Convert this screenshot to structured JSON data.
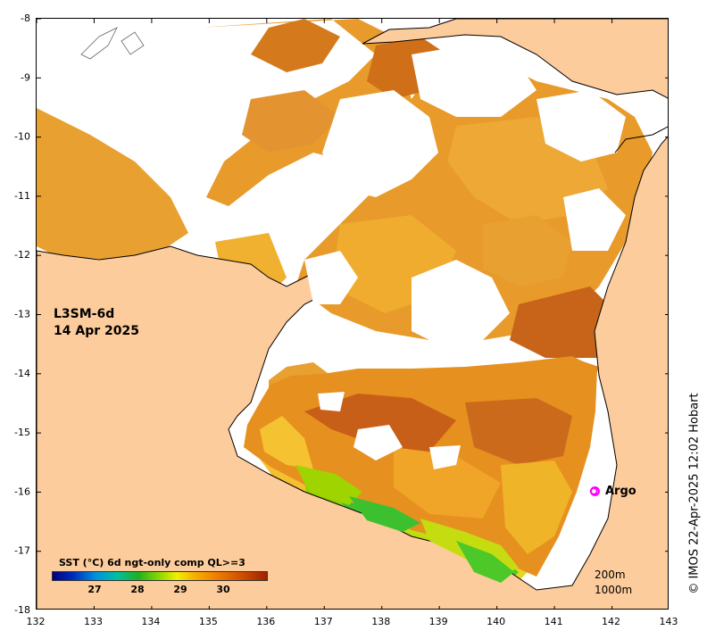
{
  "map": {
    "product": "L3SM-6d",
    "date": "14 Apr 2025",
    "lon_ticks": [
      "132",
      "133",
      "134",
      "135",
      "136",
      "137",
      "138",
      "139",
      "140",
      "141",
      "142",
      "143"
    ],
    "lat_ticks": [
      "-8",
      "-9",
      "-10",
      "-11",
      "-12",
      "-13",
      "-14",
      "-15",
      "-16",
      "-17",
      "-18"
    ],
    "lon_range": [
      132,
      143
    ],
    "lat_range": [
      -18,
      -8
    ],
    "colors": {
      "land": "#fccc9c",
      "no_data": "#ffffff",
      "argo": "#ff00ff"
    }
  },
  "colorbar": {
    "title": "SST (°C) 6d ngt-only comp QL>=3",
    "range": [
      26,
      31
    ],
    "labels": [
      "27",
      "28",
      "29",
      "30"
    ],
    "ramp": [
      "#000080",
      "#0030c0",
      "#0090e0",
      "#00c0a0",
      "#20b020",
      "#90d800",
      "#f0f000",
      "#f8b000",
      "#f08000",
      "#d05000",
      "#a02000"
    ]
  },
  "argo": {
    "label": "Argo",
    "position": {
      "lon": 141.7,
      "lat": -16.0
    }
  },
  "depth_legend": [
    "200m",
    "1000m"
  ],
  "credit": "© IMOS 22-Apr-2025 12:02 Hobart"
}
